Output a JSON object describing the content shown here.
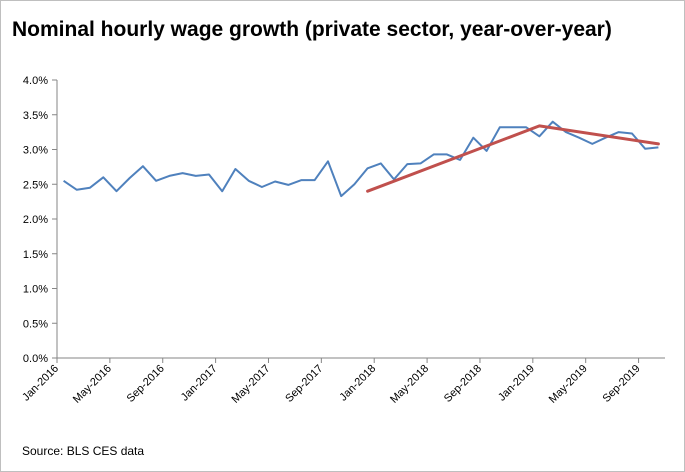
{
  "chart_data": {
    "type": "line",
    "title": "Nominal hourly wage growth (private sector, year-over-year)",
    "source": "Source: BLS CES data",
    "xlabel": "",
    "ylabel": "",
    "ylim": [
      0,
      4
    ],
    "y_ticks": [
      "0.0%",
      "0.5%",
      "1.0%",
      "1.5%",
      "2.0%",
      "2.5%",
      "3.0%",
      "3.5%",
      "4.0%"
    ],
    "x_tick_labels": [
      "Jan-2016",
      "May-2016",
      "Sep-2016",
      "Jan-2017",
      "May-2017",
      "Sep-2017",
      "Jan-2018",
      "May-2018",
      "Sep-2018",
      "Jan-2019",
      "May-2019",
      "Sep-2019"
    ],
    "grid": false,
    "legend": "none",
    "colors": {
      "wage": "#4f81bd",
      "trend": "#c0504d"
    },
    "series": [
      {
        "x_start": "Jan-2016",
        "x_end": "Oct-2019",
        "values": [
          2.55,
          2.42,
          2.45,
          2.6,
          2.4,
          2.59,
          2.76,
          2.55,
          2.62,
          2.66,
          2.62,
          2.64,
          2.4,
          2.72,
          2.55,
          2.46,
          2.54,
          2.49,
          2.56,
          2.56,
          2.83,
          2.33,
          2.5,
          2.73,
          2.8,
          2.57,
          2.79,
          2.8,
          2.93,
          2.93,
          2.85,
          3.17,
          2.98,
          3.32,
          3.32,
          3.32,
          3.19,
          3.4,
          3.25,
          3.17,
          3.08,
          3.17,
          3.25,
          3.23,
          3.01,
          3.03
        ]
      },
      {
        "points": [
          {
            "x": "Dec-2017",
            "y": 2.4
          },
          {
            "x": "Jan-2019",
            "y": 3.34
          },
          {
            "x": "Oct-2019",
            "y": 3.08
          }
        ]
      }
    ]
  }
}
